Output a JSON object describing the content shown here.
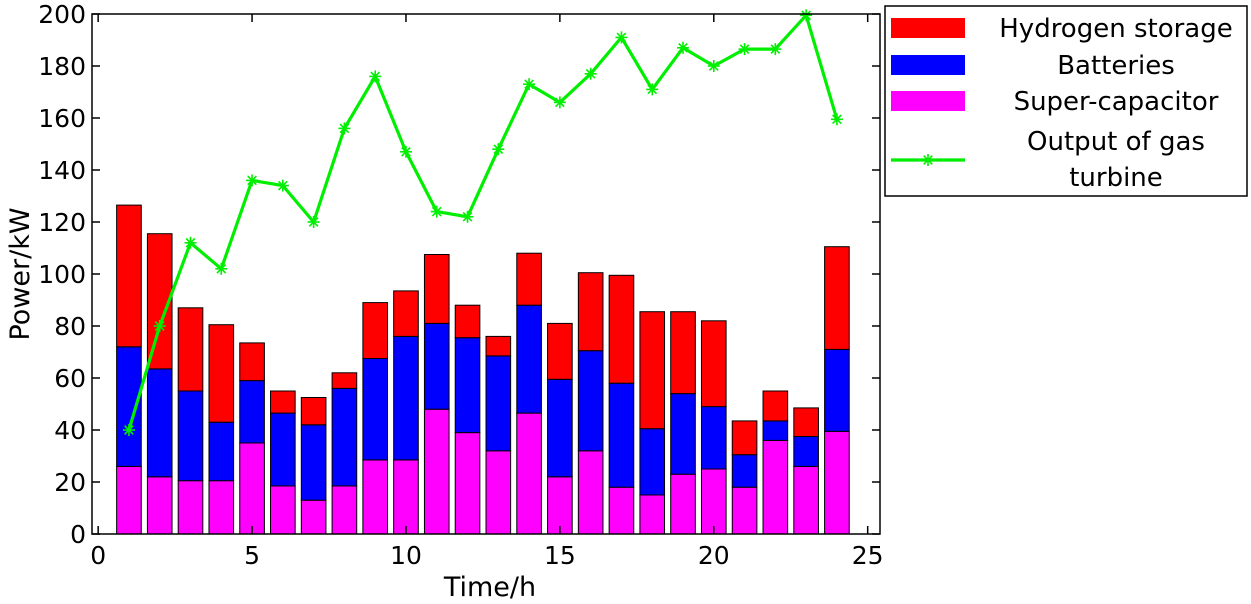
{
  "chart_data": {
    "type": "bar",
    "stacked": true,
    "xlabel": "Time/h",
    "ylabel": "Power/kW",
    "xlim": [
      -0.2,
      25.4
    ],
    "ylim": [
      0,
      200
    ],
    "xticks": [
      0,
      5,
      10,
      15,
      20,
      25
    ],
    "yticks": [
      0,
      20,
      40,
      60,
      80,
      100,
      120,
      140,
      160,
      180,
      200
    ],
    "grid": false,
    "legend_position": "outside-top-right",
    "x": [
      1,
      2,
      3,
      4,
      5,
      6,
      7,
      8,
      9,
      10,
      11,
      12,
      13,
      14,
      15,
      16,
      17,
      18,
      19,
      20,
      21,
      22,
      23,
      24
    ],
    "series": [
      {
        "name": "Super-capacitor",
        "kind": "bar",
        "color": "#ff00ff",
        "values": [
          26,
          22,
          20.5,
          20.5,
          35,
          18.5,
          13,
          18.5,
          28.5,
          28.5,
          48,
          39,
          32,
          46.5,
          22,
          32,
          18,
          15,
          23,
          25,
          18,
          36,
          26,
          39.5
        ]
      },
      {
        "name": "Batteries",
        "kind": "bar",
        "color": "#0000ff",
        "values": [
          46,
          41.5,
          34.5,
          22.5,
          24,
          28,
          29,
          37.5,
          39,
          47.5,
          33,
          36.5,
          36.5,
          41.5,
          37.5,
          38.5,
          40,
          25.5,
          31,
          24,
          12.5,
          7.5,
          11.5,
          31.5
        ]
      },
      {
        "name": "Hydrogen storage",
        "kind": "bar",
        "color": "#ff0000",
        "values": [
          54.5,
          52,
          32,
          37.5,
          14.5,
          8.5,
          10.5,
          6,
          21.5,
          17.5,
          26.5,
          12.5,
          7.5,
          20,
          21.5,
          30,
          41.5,
          45,
          31.5,
          33,
          13,
          11.5,
          11,
          39.5
        ]
      },
      {
        "name": "Output of gas turbine",
        "kind": "line",
        "color": "#00ee00",
        "marker": "asterisk",
        "values": [
          40,
          80,
          112,
          102,
          136,
          134,
          120,
          156,
          176,
          147,
          124,
          122,
          148,
          173,
          166,
          177,
          191,
          171,
          187,
          180,
          186.5,
          186.5,
          199.5,
          159.5
        ]
      }
    ]
  },
  "legend": {
    "items": [
      {
        "label": "Hydrogen storage",
        "color": "#ff0000",
        "kind": "patch"
      },
      {
        "label": "Batteries",
        "color": "#0000ff",
        "kind": "patch"
      },
      {
        "label": "Super-capacitor",
        "color": "#ff00ff",
        "kind": "patch"
      },
      {
        "label_lines": [
          "Output of gas",
          "turbine"
        ],
        "color": "#00ee00",
        "kind": "line"
      }
    ]
  }
}
